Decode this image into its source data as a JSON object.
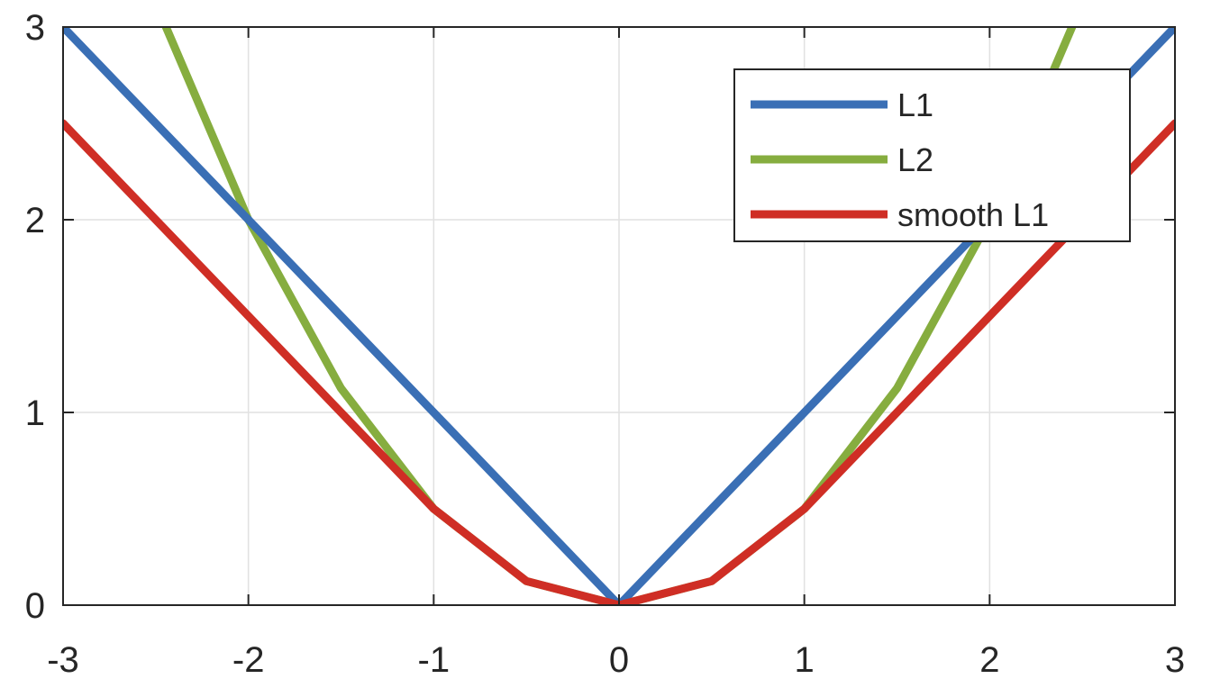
{
  "chart_data": {
    "type": "line",
    "title": "",
    "xlabel": "",
    "ylabel": "",
    "xlim": [
      -3,
      3
    ],
    "ylim": [
      0,
      3
    ],
    "xticks": [
      -3,
      -2,
      -1,
      0,
      1,
      2,
      3
    ],
    "yticks": [
      0,
      1,
      2,
      3
    ],
    "xtick_labels": [
      "-3",
      "-2",
      "-1",
      "0",
      "1",
      "2",
      "3"
    ],
    "ytick_labels": [
      "0",
      "1",
      "2",
      "3"
    ],
    "grid": true,
    "legend_position": "top-right",
    "x": [
      -3,
      -2.5,
      -2,
      -1.5,
      -1,
      -0.5,
      0,
      0.5,
      1,
      1.5,
      2,
      2.5,
      3
    ],
    "series": [
      {
        "name": "L1",
        "color": "#3a6fb5",
        "values": [
          3,
          2.5,
          2,
          1.5,
          1,
          0.5,
          0,
          0.5,
          1,
          1.5,
          2,
          2.5,
          3
        ]
      },
      {
        "name": "L2",
        "color": "#86ad3f",
        "values": [
          4.5,
          3.125,
          2,
          1.125,
          0.5,
          0.125,
          0,
          0.125,
          0.5,
          1.125,
          2,
          3.125,
          4.5
        ]
      },
      {
        "name": "smooth L1",
        "color": "#cf2e25",
        "values": [
          2.5,
          2,
          1.5,
          1,
          0.5,
          0.125,
          0,
          0.125,
          0.5,
          1,
          1.5,
          2,
          2.5
        ]
      }
    ]
  }
}
